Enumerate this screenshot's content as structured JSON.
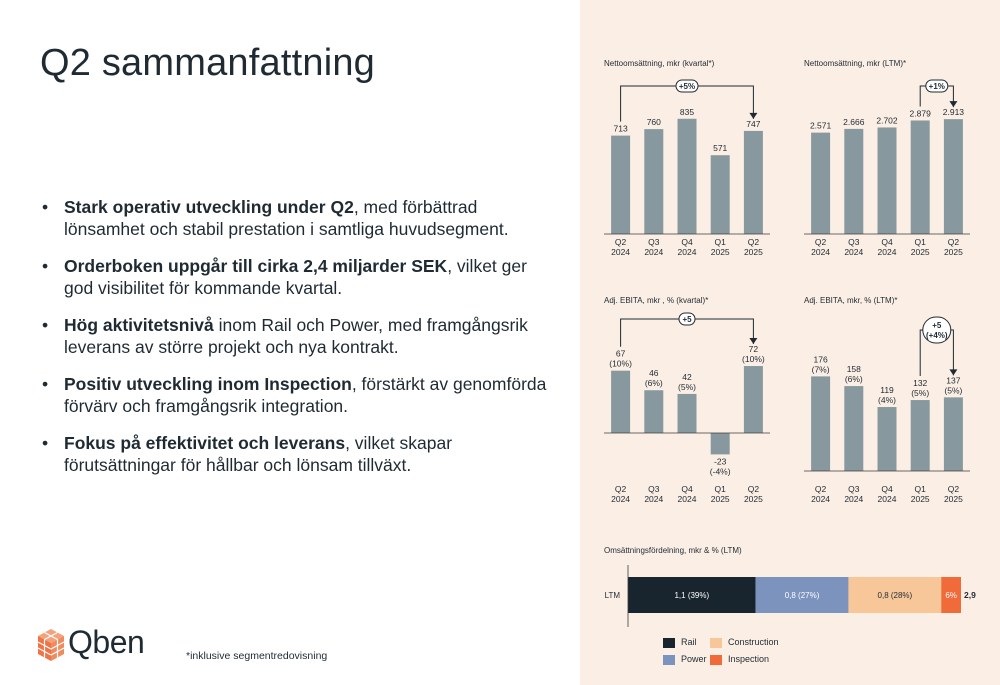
{
  "page": {
    "title": "Q2 sammanfattning",
    "footnote": "*inklusive segmentredovisning",
    "logo_text": "Qben"
  },
  "bullets": [
    {
      "bold": "Stark operativ utveckling under Q2",
      "rest": ", med förbättrad lönsamhet och stabil prestation i samtliga huvudsegment."
    },
    {
      "bold": "Orderboken uppgår till cirka 2,4 miljarder SEK",
      "rest": ", vilket ger god visibilitet för kommande kvartal."
    },
    {
      "bold": "Hög aktivitetsnivå",
      "rest": " inom Rail och Power, med framgångsrik leverans av större projekt och nya kontrakt."
    },
    {
      "bold": "Positiv utveckling inom Inspection",
      "rest": ", förstärkt av genomförda förvärv och framgångsrik integration."
    },
    {
      "bold": "Fokus på effektivitet och leverans",
      "rest": ", vilket skapar förutsättningar för hållbar och lönsam tillväxt."
    }
  ],
  "colors": {
    "bar": "#87999f",
    "panel_bg": "#fbeee4",
    "text": "#1f2a33",
    "rail": "#18252f",
    "power": "#7b93bd",
    "construction": "#f7c79a",
    "inspection": "#f16a3a",
    "logo": "#f07b4f"
  },
  "chart_data": [
    {
      "id": "net-sales-quarter",
      "type": "bar",
      "title": "Nettoomsättning, mkr  (kvartal*)",
      "categories": [
        "Q2\n2024",
        "Q3\n2024",
        "Q4\n2024",
        "Q1\n2025",
        "Q2\n2025"
      ],
      "values": [
        713,
        760,
        835,
        571,
        747
      ],
      "value_labels": [
        "713",
        "760",
        "835",
        "571",
        "747"
      ],
      "ylim": [
        0,
        1000
      ],
      "annotation": {
        "text": "+5%",
        "from_index": 0,
        "to_index": 4
      }
    },
    {
      "id": "net-sales-ltm",
      "type": "bar",
      "title": "Nettoomsättning, mkr (LTM)*",
      "categories": [
        "Q2\n2024",
        "Q3\n2024",
        "Q4\n2024",
        "Q1\n2025",
        "Q2\n2025"
      ],
      "values": [
        2571,
        2666,
        2702,
        2879,
        2913
      ],
      "value_labels": [
        "2.571",
        "2.666",
        "2.702",
        "2.879",
        "2.913"
      ],
      "ylim": [
        0,
        3500
      ],
      "annotation": {
        "text": "+1%",
        "from_index": 3,
        "to_index": 4
      }
    },
    {
      "id": "ebita-quarter",
      "type": "bar",
      "title": "Adj. EBITA, mkr , % (kvartal)*",
      "categories": [
        "Q2\n2024",
        "Q3\n2024",
        "Q4\n2024",
        "Q1\n2025",
        "Q2\n2025"
      ],
      "values": [
        67,
        46,
        42,
        -23,
        72
      ],
      "value_labels": [
        "67\n(10%)",
        "46\n(6%)",
        "42\n(5%)",
        "-23\n(-4%)",
        "72\n(10%)"
      ],
      "ylim": [
        -40,
        100
      ],
      "annotation": {
        "text": "+5",
        "from_index": 0,
        "to_index": 4
      }
    },
    {
      "id": "ebita-ltm",
      "type": "bar",
      "title": "Adj. EBITA, mkr, % (LTM)*",
      "categories": [
        "Q2\n2024",
        "Q3\n2024",
        "Q4\n2024",
        "Q1\n2025",
        "Q2\n2025"
      ],
      "values": [
        176,
        158,
        119,
        132,
        137
      ],
      "value_labels": [
        "176\n(7%)",
        "158\n(6%)",
        "119\n(4%)",
        "132\n(5%)",
        "137\n(5%)"
      ],
      "ylim": [
        0,
        240
      ],
      "annotation": {
        "text": "+5\n(+4%)",
        "from_index": 3,
        "to_index": 4
      }
    },
    {
      "id": "revenue-split",
      "type": "bar",
      "orientation": "horizontal-stacked",
      "title": "Omsättningsfördelning, mkr & % (LTM)",
      "categories": [
        "LTM"
      ],
      "series": [
        {
          "name": "Rail",
          "value": 1.1,
          "label": "1,1 (39%)",
          "color": "#18252f"
        },
        {
          "name": "Power",
          "value": 0.8,
          "label": "0,8 (27%)",
          "color": "#7b93bd"
        },
        {
          "name": "Construction",
          "value": 0.8,
          "label": "0,8 (28%)",
          "color": "#f7c79a"
        },
        {
          "name": "Inspection",
          "value": 0.17,
          "label": "6%",
          "color": "#f16a3a"
        }
      ],
      "total_label": "2,9"
    }
  ]
}
